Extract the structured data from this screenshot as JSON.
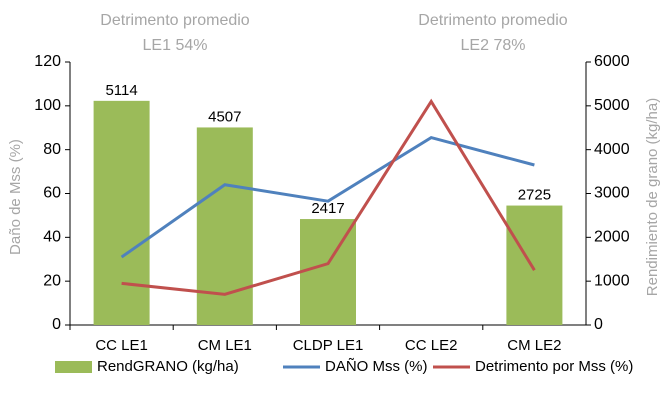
{
  "chart_data": {
    "type": "bar-line",
    "annotations": [
      [
        "Detrimento promedio",
        "LE1 54%"
      ],
      [
        "Detrimento promedio",
        "LE2 78%"
      ]
    ],
    "ylabel": "Daño de Mss (%)",
    "y2label": "Rendimiento de grano (kg/ha)",
    "categories": [
      "CC LE1",
      "CM LE1",
      "CLDP LE1",
      "CC LE2",
      "CM LE2"
    ],
    "series": [
      {
        "name": "RendGRANO (kg/ha)",
        "type": "bar",
        "axis": "y2",
        "color": "#9bbb59",
        "values": [
          5114,
          4507,
          2417,
          null,
          2725
        ]
      },
      {
        "name": "DAÑO Mss (%)",
        "type": "line",
        "color": "#4f81bd",
        "values": [
          31,
          64,
          56.5,
          85.5,
          73
        ]
      },
      {
        "name": "Detrimento por Mss (%)",
        "type": "line",
        "color": "#c0504d",
        "values": [
          19,
          14,
          28,
          102,
          25
        ]
      }
    ],
    "ylim": [
      0,
      120
    ],
    "yticks": [
      0,
      20,
      40,
      60,
      80,
      100,
      120
    ],
    "y2lim": [
      0,
      6000
    ],
    "y2ticks": [
      0,
      1000,
      2000,
      3000,
      4000,
      5000,
      6000
    ],
    "legend": "bottom"
  }
}
